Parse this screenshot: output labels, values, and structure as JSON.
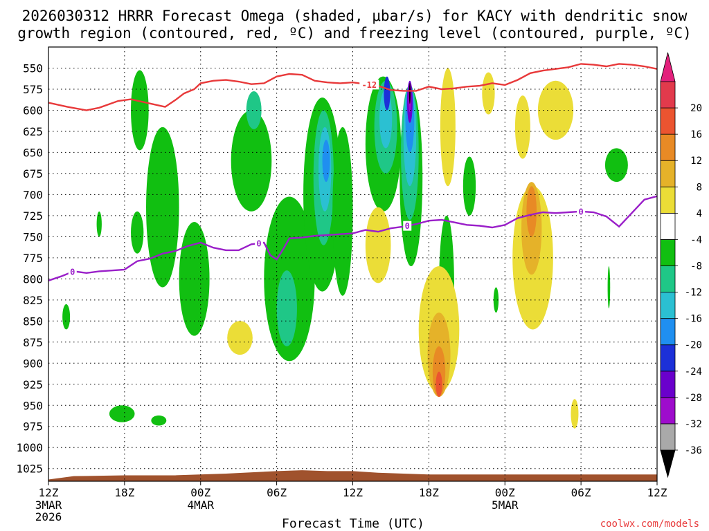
{
  "title": {
    "line1": "2026030312 HRRR Forecast Omega (shaded, μbar/s) for KACY with dendritic snow",
    "line2": "growth region (contoured, red, ºC) and freezing level (contoured, purple, ºC)"
  },
  "credit": "coolwx.com/models",
  "colors": {
    "freezing_line": "#9a1fc9",
    "dgz_line": "#e8393a",
    "terrain": "#a0522d"
  },
  "chart_data": {
    "type": "heatmap",
    "xlabel": "Forecast Time (UTC)",
    "ylabel": "",
    "xlim": [
      0,
      48
    ],
    "ylim": [
      1040,
      525
    ],
    "x_ticks": [
      {
        "h": 0,
        "label": "12Z",
        "sub1": "3MAR",
        "sub2": "2026"
      },
      {
        "h": 6,
        "label": "18Z",
        "sub1": "",
        "sub2": ""
      },
      {
        "h": 12,
        "label": "00Z",
        "sub1": "4MAR",
        "sub2": ""
      },
      {
        "h": 18,
        "label": "06Z",
        "sub1": "",
        "sub2": ""
      },
      {
        "h": 24,
        "label": "12Z",
        "sub1": "",
        "sub2": ""
      },
      {
        "h": 30,
        "label": "18Z",
        "sub1": "",
        "sub2": ""
      },
      {
        "h": 36,
        "label": "00Z",
        "sub1": "5MAR",
        "sub2": ""
      },
      {
        "h": 42,
        "label": "06Z",
        "sub1": "",
        "sub2": ""
      },
      {
        "h": 48,
        "label": "12Z",
        "sub1": "",
        "sub2": ""
      }
    ],
    "y_ticks": [
      {
        "p": 550,
        "label": "550"
      },
      {
        "p": 575,
        "label": "575"
      },
      {
        "p": 600,
        "label": "600"
      },
      {
        "p": 625,
        "label": "625"
      },
      {
        "p": 650,
        "label": "650"
      },
      {
        "p": 675,
        "label": "675"
      },
      {
        "p": 700,
        "label": "700"
      },
      {
        "p": 725,
        "label": "725"
      },
      {
        "p": 750,
        "label": "750"
      },
      {
        "p": 775,
        "label": "775"
      },
      {
        "p": 800,
        "label": "800"
      },
      {
        "p": 825,
        "label": "825"
      },
      {
        "p": 850,
        "label": "850"
      },
      {
        "p": 875,
        "label": "875"
      },
      {
        "p": 900,
        "label": "900"
      },
      {
        "p": 925,
        "label": "925"
      },
      {
        "p": 950,
        "label": "950"
      },
      {
        "p": 975,
        "label": "975"
      },
      {
        "p": 1000,
        "label": "1000"
      },
      {
        "p": 1025,
        "label": "1025"
      }
    ],
    "colorbar": {
      "colors": [
        "#000000",
        "#a9a9a9",
        "#9e0ccc",
        "#6a00cc",
        "#1c30d8",
        "#1f8ff0",
        "#2bc0d2",
        "#1fc787",
        "#11bf11",
        "#ffffff",
        "#ebdd37",
        "#e5b229",
        "#e88a25",
        "#eb5430",
        "#e23a4c",
        "#e3207c"
      ],
      "labels": [
        "-36",
        "-32",
        "-28",
        "-24",
        "-20",
        "-16",
        "-12",
        "-8",
        "-4",
        "4",
        "8",
        "12",
        "16",
        "20"
      ]
    },
    "dgz_contour": {
      "level_label": "-12",
      "points": [
        [
          0,
          591
        ],
        [
          1.5,
          596
        ],
        [
          3,
          600
        ],
        [
          4,
          597
        ],
        [
          5.5,
          589
        ],
        [
          6.5,
          587
        ],
        [
          8,
          592
        ],
        [
          9.2,
          596
        ],
        [
          10,
          588
        ],
        [
          10.7,
          580
        ],
        [
          11.5,
          575
        ],
        [
          12,
          568
        ],
        [
          13,
          565
        ],
        [
          14,
          564
        ],
        [
          15,
          566
        ],
        [
          16,
          569
        ],
        [
          17,
          568
        ],
        [
          18,
          560
        ],
        [
          19,
          557
        ],
        [
          20,
          558
        ],
        [
          21,
          565
        ],
        [
          22,
          567
        ],
        [
          23,
          568
        ],
        [
          24,
          567
        ],
        [
          25,
          569
        ],
        [
          26,
          571
        ],
        [
          27,
          576
        ],
        [
          28,
          577
        ],
        [
          29,
          577
        ],
        [
          30,
          572
        ],
        [
          31,
          575
        ],
        [
          32,
          574
        ],
        [
          33,
          572
        ],
        [
          34,
          571
        ],
        [
          35,
          568
        ],
        [
          36,
          570
        ],
        [
          37,
          564
        ],
        [
          38,
          556
        ],
        [
          39,
          553
        ],
        [
          40,
          551
        ],
        [
          41,
          549
        ],
        [
          42,
          545
        ],
        [
          43,
          546
        ],
        [
          44,
          548
        ],
        [
          45,
          545
        ],
        [
          46,
          546
        ],
        [
          47,
          548
        ],
        [
          48,
          551
        ]
      ]
    },
    "freezing_contour": {
      "level_label": "0",
      "points": [
        [
          0,
          802
        ],
        [
          1,
          797
        ],
        [
          2,
          791
        ],
        [
          3,
          793
        ],
        [
          4,
          791
        ],
        [
          6,
          789
        ],
        [
          7,
          779
        ],
        [
          8,
          776
        ],
        [
          9,
          770
        ],
        [
          10,
          767
        ],
        [
          11,
          761
        ],
        [
          12,
          757
        ],
        [
          13,
          763
        ],
        [
          14,
          766
        ],
        [
          15,
          766
        ],
        [
          16,
          759
        ],
        [
          17,
          757
        ],
        [
          17.5,
          772
        ],
        [
          18,
          777
        ],
        [
          18.5,
          765
        ],
        [
          19,
          752
        ],
        [
          20,
          751
        ],
        [
          21,
          749
        ],
        [
          22,
          748
        ],
        [
          23,
          747
        ],
        [
          24,
          746
        ],
        [
          25,
          742
        ],
        [
          26,
          744
        ],
        [
          27,
          740
        ],
        [
          28,
          738
        ],
        [
          29,
          735
        ],
        [
          30,
          731
        ],
        [
          31,
          730
        ],
        [
          32,
          733
        ],
        [
          33,
          736
        ],
        [
          34,
          737
        ],
        [
          35,
          739
        ],
        [
          36,
          736
        ],
        [
          37,
          728
        ],
        [
          38,
          724
        ],
        [
          39,
          721
        ],
        [
          40,
          722
        ],
        [
          41,
          721
        ],
        [
          42,
          720
        ],
        [
          43,
          721
        ],
        [
          44,
          726
        ],
        [
          45,
          738
        ],
        [
          46,
          722
        ],
        [
          47,
          706
        ],
        [
          48,
          702
        ]
      ]
    },
    "terrain": {
      "points": [
        [
          0,
          1038
        ],
        [
          2,
          1034
        ],
        [
          6,
          1033
        ],
        [
          10,
          1033
        ],
        [
          14,
          1031
        ],
        [
          18,
          1028
        ],
        [
          20,
          1027
        ],
        [
          22,
          1028
        ],
        [
          24,
          1028
        ],
        [
          26,
          1030
        ],
        [
          30,
          1032
        ],
        [
          34,
          1032
        ],
        [
          36,
          1032
        ],
        [
          40,
          1032
        ],
        [
          44,
          1032
        ],
        [
          48,
          1032
        ]
      ]
    },
    "omega_features": [
      {
        "cat": 8,
        "x": 7.2,
        "p": 600,
        "w": 0.7,
        "h": 95
      },
      {
        "cat": 8,
        "x": 9.0,
        "p": 715,
        "w": 1.3,
        "h": 190
      },
      {
        "cat": 8,
        "x": 11.5,
        "p": 800,
        "w": 1.2,
        "h": 135
      },
      {
        "cat": 8,
        "x": 7.0,
        "p": 745,
        "w": 0.5,
        "h": 50
      },
      {
        "cat": 8,
        "x": 1.4,
        "p": 845,
        "w": 0.3,
        "h": 30
      },
      {
        "cat": 8,
        "x": 5.8,
        "p": 960,
        "w": 1.0,
        "h": 20
      },
      {
        "cat": 8,
        "x": 8.7,
        "p": 968,
        "w": 0.6,
        "h": 12
      },
      {
        "cat": 8,
        "x": 4.0,
        "p": 735,
        "w": 0.2,
        "h": 30
      },
      {
        "cat": 8,
        "x": 16.0,
        "p": 660,
        "w": 1.6,
        "h": 120
      },
      {
        "cat": 7,
        "x": 16.2,
        "p": 600,
        "w": 0.6,
        "h": 45
      },
      {
        "cat": 8,
        "x": 19.0,
        "p": 800,
        "w": 2.0,
        "h": 195
      },
      {
        "cat": 7,
        "x": 18.8,
        "p": 835,
        "w": 0.8,
        "h": 90
      },
      {
        "cat": 8,
        "x": 21.6,
        "p": 700,
        "w": 1.5,
        "h": 230
      },
      {
        "cat": 7,
        "x": 21.7,
        "p": 680,
        "w": 0.8,
        "h": 160
      },
      {
        "cat": 6,
        "x": 21.8,
        "p": 670,
        "w": 0.5,
        "h": 100
      },
      {
        "cat": 5,
        "x": 21.9,
        "p": 660,
        "w": 0.3,
        "h": 50
      },
      {
        "cat": 8,
        "x": 23.2,
        "p": 720,
        "w": 0.8,
        "h": 200
      },
      {
        "cat": 8,
        "x": 26.4,
        "p": 640,
        "w": 1.4,
        "h": 160
      },
      {
        "cat": 7,
        "x": 26.6,
        "p": 620,
        "w": 0.9,
        "h": 110
      },
      {
        "cat": 6,
        "x": 26.6,
        "p": 610,
        "w": 0.5,
        "h": 70
      },
      {
        "cat": 4,
        "x": 26.7,
        "p": 580,
        "w": 0.25,
        "h": 40
      },
      {
        "cat": 8,
        "x": 28.6,
        "p": 680,
        "w": 0.9,
        "h": 210
      },
      {
        "cat": 7,
        "x": 28.5,
        "p": 650,
        "w": 0.7,
        "h": 160
      },
      {
        "cat": 6,
        "x": 28.5,
        "p": 630,
        "w": 0.5,
        "h": 120
      },
      {
        "cat": 5,
        "x": 28.5,
        "p": 610,
        "w": 0.35,
        "h": 80
      },
      {
        "cat": 3,
        "x": 28.5,
        "p": 590,
        "w": 0.22,
        "h": 50
      },
      {
        "cat": 2,
        "x": 28.5,
        "p": 585,
        "w": 0.12,
        "h": 35
      },
      {
        "cat": 0,
        "x": 28.5,
        "p": 580,
        "w": 0.06,
        "h": 25
      },
      {
        "cat": 8,
        "x": 31.4,
        "p": 810,
        "w": 0.6,
        "h": 170
      },
      {
        "cat": 8,
        "x": 33.2,
        "p": 690,
        "w": 0.5,
        "h": 70
      },
      {
        "cat": 8,
        "x": 35.3,
        "p": 825,
        "w": 0.2,
        "h": 30
      },
      {
        "cat": 8,
        "x": 44.8,
        "p": 665,
        "w": 0.9,
        "h": 40
      },
      {
        "cat": 8,
        "x": 44.2,
        "p": 810,
        "w": 0.1,
        "h": 50
      },
      {
        "cat": 10,
        "x": 15.1,
        "p": 870,
        "w": 1.0,
        "h": 40
      },
      {
        "cat": 10,
        "x": 26.0,
        "p": 760,
        "w": 1.0,
        "h": 90
      },
      {
        "cat": 10,
        "x": 31.5,
        "p": 620,
        "w": 0.6,
        "h": 140
      },
      {
        "cat": 10,
        "x": 30.8,
        "p": 860,
        "w": 1.6,
        "h": 150
      },
      {
        "cat": 11,
        "x": 30.8,
        "p": 890,
        "w": 0.9,
        "h": 100
      },
      {
        "cat": 12,
        "x": 30.8,
        "p": 910,
        "w": 0.5,
        "h": 60
      },
      {
        "cat": 13,
        "x": 30.8,
        "p": 925,
        "w": 0.25,
        "h": 30
      },
      {
        "cat": 10,
        "x": 34.7,
        "p": 580,
        "w": 0.5,
        "h": 50
      },
      {
        "cat": 10,
        "x": 37.4,
        "p": 620,
        "w": 0.6,
        "h": 75
      },
      {
        "cat": 10,
        "x": 40.0,
        "p": 600,
        "w": 1.4,
        "h": 70
      },
      {
        "cat": 10,
        "x": 38.2,
        "p": 775,
        "w": 1.6,
        "h": 170
      },
      {
        "cat": 11,
        "x": 38.1,
        "p": 740,
        "w": 0.8,
        "h": 110
      },
      {
        "cat": 12,
        "x": 38.1,
        "p": 720,
        "w": 0.4,
        "h": 60
      },
      {
        "cat": 10,
        "x": 41.5,
        "p": 960,
        "w": 0.3,
        "h": 35
      }
    ]
  }
}
